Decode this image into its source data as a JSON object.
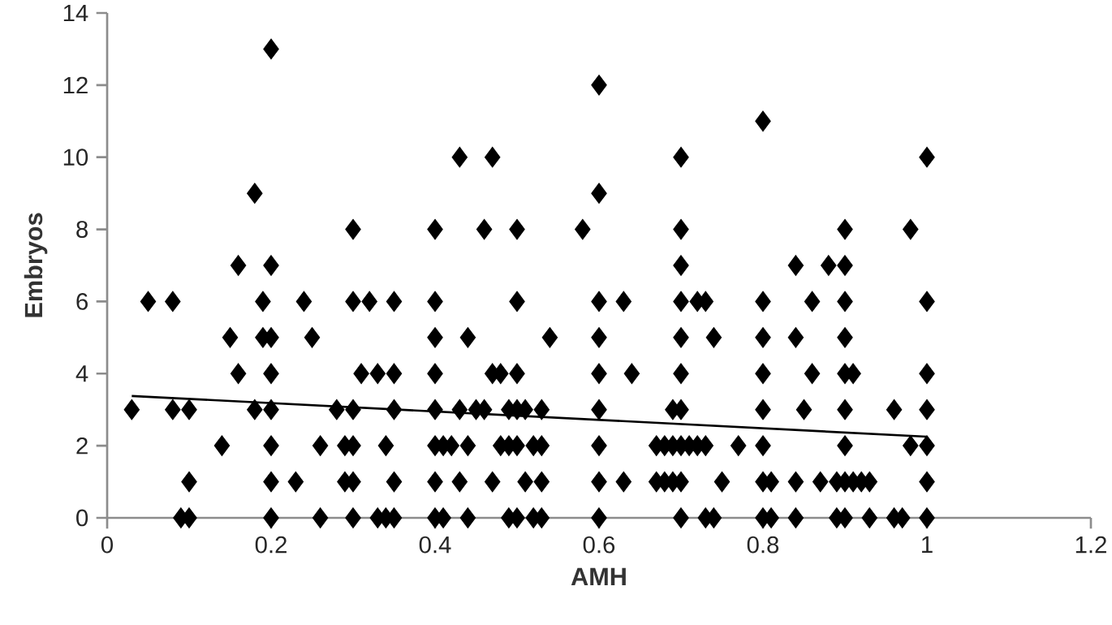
{
  "chart_data": {
    "type": "scatter",
    "xlabel": "AMH",
    "ylabel": "Embryos",
    "xlim": [
      0,
      1.2
    ],
    "ylim": [
      0,
      14
    ],
    "xticks": [
      0,
      0.2,
      0.4,
      0.6,
      0.8,
      1,
      1.2
    ],
    "yticks": [
      0,
      2,
      4,
      6,
      8,
      10,
      12,
      14
    ],
    "series": [
      {
        "color": "#000000",
        "marker": "diamond",
        "x": [
          0.2,
          0.6,
          0.8,
          0.43,
          0.47,
          0.7,
          1.0,
          0.18,
          0.6,
          0.3,
          0.4,
          0.46,
          0.5,
          0.58,
          0.7,
          0.9,
          0.98,
          0.16,
          0.2,
          0.7,
          0.84,
          0.88,
          0.9,
          0.05,
          0.08,
          0.19,
          0.24,
          0.3,
          0.32,
          0.35,
          0.4,
          0.5,
          0.6,
          0.63,
          0.7,
          0.72,
          0.73,
          0.8,
          0.86,
          0.9,
          1.0,
          0.15,
          0.19,
          0.2,
          0.25,
          0.4,
          0.44,
          0.54,
          0.6,
          0.7,
          0.74,
          0.8,
          0.84,
          0.9,
          0.16,
          0.2,
          0.31,
          0.33,
          0.35,
          0.4,
          0.47,
          0.48,
          0.5,
          0.6,
          0.64,
          0.7,
          0.8,
          0.86,
          0.9,
          0.91,
          1.0,
          0.03,
          0.08,
          0.1,
          0.18,
          0.2,
          0.28,
          0.3,
          0.35,
          0.4,
          0.43,
          0.45,
          0.46,
          0.49,
          0.5,
          0.51,
          0.53,
          0.6,
          0.69,
          0.7,
          0.8,
          0.85,
          0.9,
          0.96,
          1.0,
          0.14,
          0.2,
          0.26,
          0.29,
          0.3,
          0.34,
          0.4,
          0.41,
          0.42,
          0.44,
          0.48,
          0.49,
          0.5,
          0.52,
          0.53,
          0.6,
          0.67,
          0.68,
          0.69,
          0.7,
          0.71,
          0.72,
          0.73,
          0.77,
          0.8,
          0.9,
          0.98,
          1.0,
          0.1,
          0.2,
          0.23,
          0.29,
          0.3,
          0.35,
          0.4,
          0.43,
          0.47,
          0.51,
          0.53,
          0.6,
          0.63,
          0.67,
          0.68,
          0.69,
          0.7,
          0.75,
          0.8,
          0.81,
          0.84,
          0.87,
          0.89,
          0.9,
          0.91,
          0.92,
          0.93,
          1.0,
          0.09,
          0.1,
          0.2,
          0.26,
          0.3,
          0.33,
          0.34,
          0.35,
          0.4,
          0.41,
          0.44,
          0.49,
          0.5,
          0.52,
          0.53,
          0.6,
          0.7,
          0.73,
          0.74,
          0.8,
          0.81,
          0.84,
          0.89,
          0.9,
          0.93,
          0.96,
          0.97,
          1.0
        ],
        "values": [
          13,
          12,
          11,
          10,
          10,
          10,
          10,
          9,
          9,
          8,
          8,
          8,
          8,
          8,
          8,
          8,
          8,
          7,
          7,
          7,
          7,
          7,
          7,
          6,
          6,
          6,
          6,
          6,
          6,
          6,
          6,
          6,
          6,
          6,
          6,
          6,
          6,
          6,
          6,
          6,
          6,
          5,
          5,
          5,
          5,
          5,
          5,
          5,
          5,
          5,
          5,
          5,
          5,
          5,
          4,
          4,
          4,
          4,
          4,
          4,
          4,
          4,
          4,
          4,
          4,
          4,
          4,
          4,
          4,
          4,
          4,
          3,
          3,
          3,
          3,
          3,
          3,
          3,
          3,
          3,
          3,
          3,
          3,
          3,
          3,
          3,
          3,
          3,
          3,
          3,
          3,
          3,
          3,
          3,
          3,
          2,
          2,
          2,
          2,
          2,
          2,
          2,
          2,
          2,
          2,
          2,
          2,
          2,
          2,
          2,
          2,
          2,
          2,
          2,
          2,
          2,
          2,
          2,
          2,
          2,
          2,
          2,
          2,
          1,
          1,
          1,
          1,
          1,
          1,
          1,
          1,
          1,
          1,
          1,
          1,
          1,
          1,
          1,
          1,
          1,
          1,
          1,
          1,
          1,
          1,
          1,
          1,
          1,
          1,
          1,
          1,
          0,
          0,
          0,
          0,
          0,
          0,
          0,
          0,
          0,
          0,
          0,
          0,
          0,
          0,
          0,
          0,
          0,
          0,
          0,
          0,
          0,
          0,
          0,
          0,
          0,
          0,
          0,
          0
        ]
      },
      {
        "type": "line",
        "color": "#000000",
        "marker": "none",
        "x": [
          0.03,
          1.0
        ],
        "values": [
          3.38,
          2.25
        ]
      }
    ]
  }
}
